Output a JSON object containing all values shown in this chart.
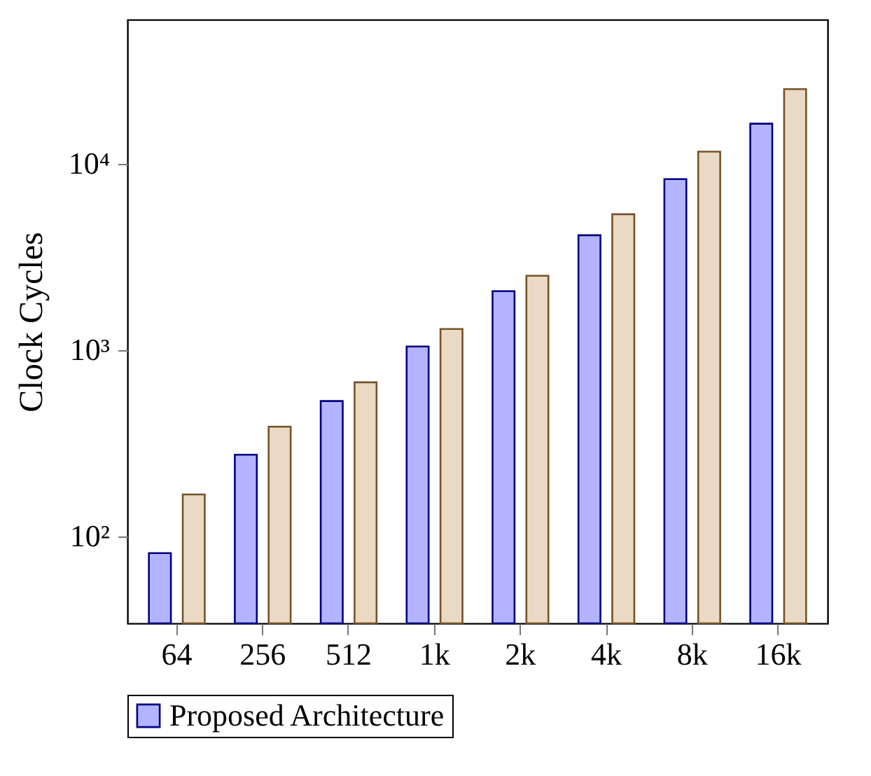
{
  "chart_data": {
    "type": "bar",
    "ylabel": "Clock Cycles",
    "log": true,
    "legend": "bottom",
    "grid": false,
    "categories": [
      "64",
      "256",
      "512",
      "1k",
      "2k",
      "4k",
      "8k",
      "16k"
    ],
    "ylim": [
      34,
      59000
    ],
    "yticks": [
      {
        "value": 100,
        "label": "10²"
      },
      {
        "value": 1000,
        "label": "10³"
      },
      {
        "value": 10000,
        "label": "10⁴"
      }
    ],
    "series": [
      {
        "name": "Proposed Architecture",
        "color": "#b3b3ff",
        "values": [
          81,
          273,
          530,
          1040,
          2060,
          4110,
          8220,
          16300
        ]
      },
      {
        "color": "#ead9c4",
        "values": [
          167,
          386,
          668,
          1290,
          2490,
          5330,
          11550,
          25000
        ]
      }
    ]
  }
}
